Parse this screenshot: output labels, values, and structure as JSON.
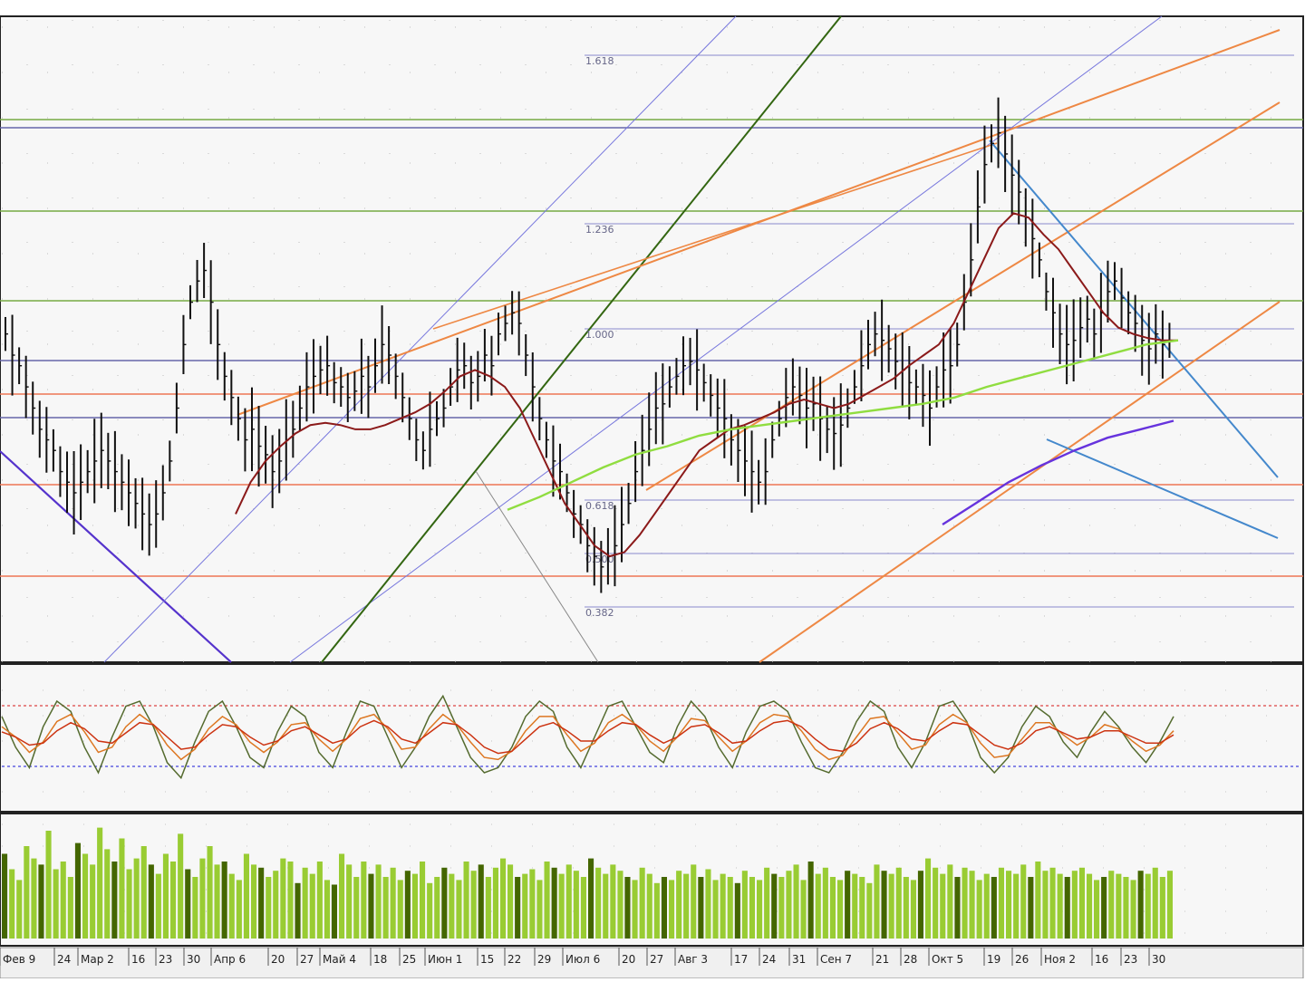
{
  "chart_data": [
    {
      "panel": "price",
      "type": "line",
      "x_axis": {
        "tick_labels": [
          "Фев 9",
          "24",
          "Мар 2",
          "16",
          "23",
          "30",
          "Апр 6",
          "20",
          "27",
          "Май 4",
          "18",
          "25",
          "Июн 1",
          "15",
          "22",
          "29",
          "Июл 6",
          "20",
          "27",
          "Авг 3",
          "17",
          "24",
          "31",
          "Сен 7",
          "21",
          "28",
          "Окт 5",
          "19",
          "26",
          "Ноя 2",
          "16",
          "23",
          "30"
        ]
      },
      "fibonacci_levels": [
        {
          "label": "1.618",
          "value": 1.618
        },
        {
          "label": "1.236",
          "value": 1.236
        },
        {
          "label": "1.000",
          "value": 1.0
        },
        {
          "label": "0.618",
          "value": 0.618
        },
        {
          "label": "0.500",
          "value": 0.5
        },
        {
          "label": "0.382",
          "value": 0.382
        }
      ],
      "series": [
        {
          "name": "",
          "role": "price-bars",
          "color": "#111111",
          "values": [
            0.95,
            0.85,
            0.8,
            0.7,
            0.6,
            0.5,
            0.45,
            0.4,
            0.3,
            0.25,
            0.2,
            0.25,
            0.3,
            0.35,
            0.4,
            0.35,
            0.3,
            0.25,
            0.2,
            0.15,
            0.1,
            0.05,
            0.1,
            0.2,
            0.35,
            0.6,
            0.9,
            1.1,
            1.2,
            1.25,
            1.1,
            0.9,
            0.75,
            0.65,
            0.55,
            0.45,
            0.5,
            0.42,
            0.38,
            0.3,
            0.35,
            0.45,
            0.5,
            0.6,
            0.7,
            0.75,
            0.78,
            0.8,
            0.72,
            0.7,
            0.65,
            0.68,
            0.75,
            0.7,
            0.8,
            0.9,
            0.85,
            0.75,
            0.65,
            0.55,
            0.45,
            0.4,
            0.5,
            0.55,
            0.6,
            0.7,
            0.78,
            0.8,
            0.72,
            0.75,
            0.85,
            0.8,
            0.95,
            1.0,
            1.05,
            1.0,
            0.85,
            0.7,
            0.55,
            0.45,
            0.35,
            0.3,
            0.2,
            0.1,
            0.05,
            -0.05,
            -0.1,
            -0.15,
            -0.1,
            -0.05,
            0.05,
            0.15,
            0.3,
            0.4,
            0.5,
            0.6,
            0.62,
            0.7,
            0.75,
            0.8,
            0.82,
            0.78,
            0.72,
            0.66,
            0.6,
            0.55,
            0.45,
            0.4,
            0.35,
            0.3,
            0.25,
            0.3,
            0.45,
            0.55,
            0.65,
            0.7,
            0.66,
            0.6,
            0.62,
            0.55,
            0.5,
            0.48,
            0.52,
            0.6,
            0.7,
            0.8,
            0.9,
            0.95,
            0.92,
            0.88,
            0.82,
            0.78,
            0.72,
            0.7,
            0.66,
            0.6,
            0.7,
            0.78,
            0.8,
            0.9,
            1.1,
            1.3,
            1.55,
            1.75,
            1.85,
            1.9,
            1.8,
            1.7,
            1.62,
            1.5,
            1.4,
            1.3,
            1.15,
            1.05,
            0.95,
            0.9,
            0.92,
            0.98,
            1.02,
            0.95,
            1.05,
            1.15,
            1.2,
            1.12,
            1.05,
            1.0,
            0.92,
            0.88,
            0.95,
            0.9,
            0.92
          ]
        },
        {
          "name": "",
          "role": "fast-moving-average",
          "color": "#8b1a1a",
          "values": [
            null,
            null,
            null,
            null,
            null,
            null,
            null,
            null,
            null,
            null,
            null,
            null,
            null,
            null,
            null,
            null,
            null,
            null,
            null,
            null,
            null,
            null,
            null,
            null,
            null,
            null,
            0.1,
            0.25,
            0.35,
            0.42,
            0.48,
            0.52,
            0.53,
            0.52,
            0.5,
            0.5,
            0.52,
            0.55,
            0.58,
            0.62,
            0.68,
            0.75,
            0.78,
            0.75,
            0.7,
            0.6,
            0.45,
            0.3,
            0.15,
            0.05,
            -0.05,
            -0.1,
            -0.08,
            0.0,
            0.1,
            0.2,
            0.3,
            0.4,
            0.45,
            0.5,
            0.52,
            0.55,
            0.58,
            0.62,
            0.64,
            0.62,
            0.6,
            0.62,
            0.66,
            0.7,
            0.74,
            0.8,
            0.85,
            0.9,
            1.0,
            1.15,
            1.3,
            1.45,
            1.52,
            1.5,
            1.42,
            1.35,
            1.25,
            1.15,
            1.05,
            0.98,
            0.95,
            0.93,
            0.92,
            0.92
          ]
        },
        {
          "name": "",
          "role": "slow-moving-average",
          "color": "#90dd40",
          "values": [
            null,
            null,
            null,
            null,
            null,
            null,
            null,
            null,
            null,
            null,
            null,
            null,
            null,
            null,
            null,
            null,
            null,
            null,
            null,
            null,
            null,
            null,
            null,
            null,
            null,
            null,
            null,
            null,
            null,
            null,
            null,
            null,
            null,
            null,
            null,
            null,
            null,
            null,
            null,
            null,
            0.12,
            0.18,
            0.25,
            0.32,
            0.38,
            0.42,
            0.47,
            0.5,
            0.52,
            0.54,
            0.56,
            0.58,
            0.6,
            0.62,
            0.65,
            0.7,
            0.74,
            0.78,
            0.82,
            0.86,
            0.9,
            0.92
          ]
        },
        {
          "name": "",
          "role": "long-moving-average",
          "color": "#6633dd",
          "values": [
            null,
            null,
            null,
            null,
            null,
            null,
            null,
            null,
            null,
            null,
            null,
            null,
            null,
            null,
            null,
            null,
            null,
            null,
            null,
            null,
            null,
            null,
            null,
            null,
            null,
            null,
            null,
            null,
            null,
            null,
            null,
            null,
            null,
            null,
            null,
            null,
            null,
            null,
            null,
            null,
            null,
            null,
            null,
            null,
            0.05,
            0.15,
            0.25,
            0.33,
            0.4,
            0.46,
            0.5,
            0.54
          ]
        }
      ]
    },
    {
      "panel": "oscillator",
      "type": "line",
      "reference_lines": [
        {
          "level": "upper",
          "color": "#dd4444"
        },
        {
          "level": "lower",
          "color": "#4444dd"
        }
      ],
      "series": [
        {
          "name": "",
          "color": "#556b2f",
          "values": [
            70,
            40,
            20,
            60,
            85,
            75,
            40,
            15,
            50,
            80,
            85,
            60,
            25,
            10,
            45,
            75,
            85,
            60,
            30,
            20,
            55,
            80,
            70,
            35,
            20,
            55,
            85,
            80,
            50,
            20,
            40,
            70,
            90,
            60,
            30,
            15,
            20,
            40,
            70,
            85,
            75,
            40,
            20,
            50,
            80,
            85,
            60,
            35,
            25,
            60,
            85,
            70,
            40,
            20,
            55,
            80,
            85,
            75,
            45,
            20,
            15,
            35,
            65,
            85,
            75,
            40,
            20,
            45,
            80,
            85,
            65,
            30,
            15,
            30,
            60,
            80,
            70,
            45,
            30,
            55,
            75,
            60,
            40,
            25,
            45,
            70
          ]
        },
        {
          "name": "",
          "color": "#dd7722",
          "values": [
            60,
            50,
            35,
            45,
            65,
            72,
            55,
            35,
            40,
            60,
            72,
            62,
            42,
            28,
            38,
            58,
            70,
            62,
            45,
            35,
            45,
            62,
            64,
            48,
            36,
            48,
            68,
            72,
            58,
            38,
            40,
            58,
            72,
            62,
            45,
            30,
            28,
            36,
            56,
            70,
            70,
            52,
            36,
            44,
            64,
            72,
            62,
            46,
            36,
            50,
            68,
            66,
            50,
            36,
            46,
            64,
            72,
            70,
            56,
            38,
            28,
            32,
            50,
            68,
            70,
            54,
            38,
            42,
            62,
            72,
            64,
            44,
            30,
            32,
            48,
            64,
            64,
            52,
            42,
            50,
            62,
            58,
            46,
            36,
            42,
            56
          ]
        },
        {
          "name": "",
          "color": "#cc3311",
          "values": [
            55,
            50,
            42,
            44,
            56,
            64,
            58,
            46,
            44,
            54,
            64,
            62,
            50,
            38,
            40,
            52,
            62,
            60,
            50,
            42,
            46,
            56,
            60,
            52,
            44,
            48,
            60,
            66,
            60,
            48,
            44,
            54,
            64,
            62,
            52,
            40,
            34,
            36,
            48,
            60,
            64,
            56,
            46,
            46,
            56,
            64,
            62,
            52,
            44,
            50,
            60,
            62,
            54,
            44,
            46,
            56,
            64,
            66,
            60,
            48,
            38,
            36,
            44,
            58,
            64,
            58,
            48,
            46,
            56,
            64,
            62,
            52,
            42,
            38,
            44,
            56,
            60,
            54,
            48,
            50,
            56,
            56,
            50,
            44,
            44,
            52
          ]
        }
      ]
    },
    {
      "panel": "volume",
      "type": "bar",
      "series": [
        {
          "name": "",
          "colors": [
            "#99cc33",
            "#446600"
          ],
          "values": [
            55,
            45,
            38,
            60,
            52,
            48,
            70,
            45,
            50,
            40,
            62,
            55,
            48,
            72,
            58,
            50,
            65,
            45,
            52,
            60,
            48,
            42,
            55,
            50,
            68,
            45,
            40,
            52,
            60,
            48,
            50,
            42,
            38,
            55,
            48,
            46,
            40,
            44,
            52,
            50,
            36,
            46,
            42,
            50,
            38,
            35,
            55,
            48,
            40,
            50,
            42,
            48,
            40,
            46,
            38,
            44,
            42,
            50,
            36,
            40,
            46,
            42,
            38,
            50,
            44,
            48,
            40,
            46,
            52,
            48,
            40,
            42,
            45,
            38,
            50,
            46,
            42,
            48,
            44,
            40,
            52,
            46,
            42,
            48,
            44,
            40,
            38,
            46,
            42,
            36,
            40,
            38,
            44,
            42,
            48,
            40,
            45,
            38,
            42,
            40,
            36,
            44,
            40,
            38,
            46,
            42,
            40,
            44,
            48,
            38,
            50,
            42,
            46,
            40,
            38,
            44,
            42,
            40,
            36,
            48,
            44,
            42,
            46,
            40,
            38,
            44,
            52,
            46,
            42,
            48,
            40,
            46,
            44,
            38,
            42,
            40,
            46,
            44,
            42,
            48,
            40,
            50,
            44,
            46,
            42,
            40,
            44,
            46,
            42,
            38,
            40,
            44,
            42,
            40,
            38,
            44,
            42,
            46,
            40,
            44
          ]
        }
      ]
    }
  ]
}
